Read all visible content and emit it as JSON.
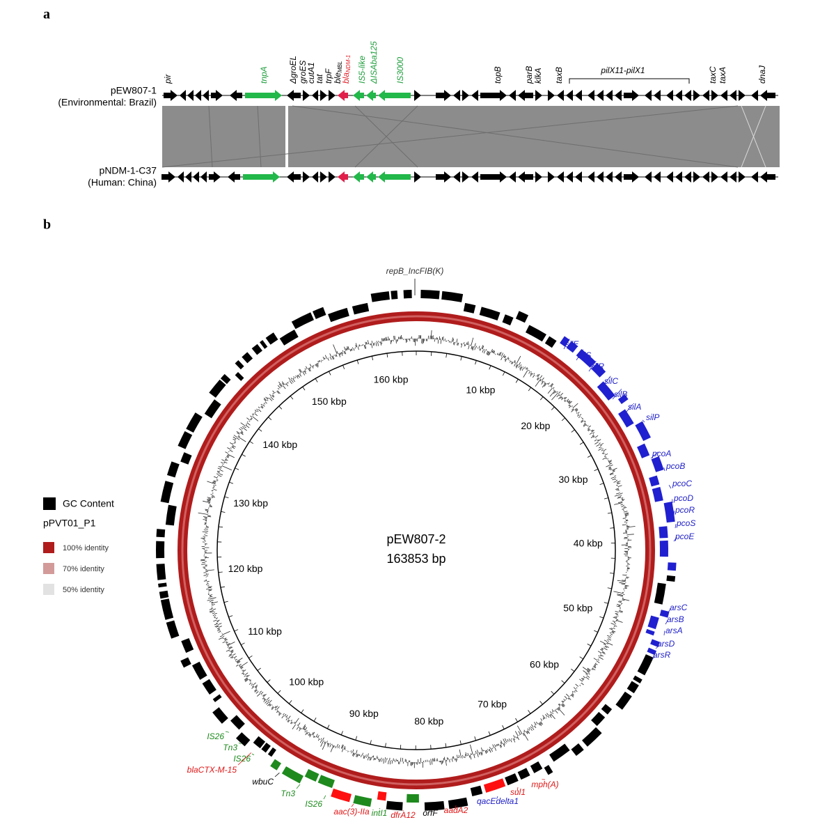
{
  "panel_a": {
    "label": "a",
    "tracks": [
      {
        "name": "pEW807-1",
        "description": "(Environmental: Brazil)"
      },
      {
        "name": "pNDM-1-C37",
        "description": "(Human: China)"
      }
    ],
    "genes": [
      {
        "text": "pir",
        "color": "#000000"
      },
      {
        "text": "tnpA",
        "color": "#1e9e3c"
      },
      {
        "text": "ΔgroEL",
        "color": "#000000"
      },
      {
        "text": "groES",
        "color": "#000000"
      },
      {
        "text": "cutA1",
        "color": "#000000"
      },
      {
        "text": "tat",
        "color": "#000000"
      },
      {
        "text": "trpF",
        "color": "#000000"
      },
      {
        "text": "ble",
        "sub": "MBL",
        "color": "#000000"
      },
      {
        "text": "bla",
        "sub": "NDM-1",
        "color": "#e0202a"
      },
      {
        "text": "IS5-like",
        "color": "#1e9e3c"
      },
      {
        "text": "ΔISAba125",
        "color": "#1e9e3c"
      },
      {
        "text": "IS3000",
        "color": "#1e9e3c"
      },
      {
        "text": "topB",
        "color": "#000000"
      },
      {
        "text": "parB",
        "color": "#000000"
      },
      {
        "text": "klkA",
        "color": "#000000"
      },
      {
        "text": "taxB",
        "color": "#000000"
      },
      {
        "text": "taxC",
        "color": "#000000"
      },
      {
        "text": "taxA",
        "color": "#000000"
      },
      {
        "text": "dnaJ",
        "color": "#000000"
      }
    ],
    "region": "pilX11-pilX1"
  },
  "panel_b": {
    "label": "b",
    "plasmid": "pEW807-2",
    "length": "163853 bp",
    "rep": "repB_IncFIB(K)",
    "ring_labels": [
      "10 kbp",
      "20 kbp",
      "30 kbp",
      "40 kbp",
      "50 kbp",
      "60 kbp",
      "70 kbp",
      "80 kbp",
      "90 kbp",
      "100 kbp",
      "110 kbp",
      "120 kbp",
      "130 kbp",
      "140 kbp",
      "150 kbp",
      "160 kbp"
    ],
    "legend": {
      "gc": "GC Content",
      "reference": "pPVT01_P1",
      "identities": [
        {
          "text": "100% identity",
          "color": "#b01c1c"
        },
        {
          "text": "70% identity",
          "color": "#d39a9a"
        },
        {
          "text": "50% identity",
          "color": "#e2e2e2"
        }
      ]
    },
    "genes": [
      {
        "text": "silE",
        "color": "#2020c8"
      },
      {
        "text": "silS",
        "color": "#2020c8"
      },
      {
        "text": "silR",
        "color": "#2020c8"
      },
      {
        "text": "silC",
        "color": "#2020c8"
      },
      {
        "text": "silB",
        "color": "#2020c8"
      },
      {
        "text": "silA",
        "color": "#2020c8"
      },
      {
        "text": "silP",
        "color": "#2020c8"
      },
      {
        "text": "pcoA",
        "color": "#2020c8"
      },
      {
        "text": "pcoB",
        "color": "#2020c8"
      },
      {
        "text": "pcoC",
        "color": "#2020c8"
      },
      {
        "text": "pcoD",
        "color": "#2020c8"
      },
      {
        "text": "pcoR",
        "color": "#2020c8"
      },
      {
        "text": "pcoS",
        "color": "#2020c8"
      },
      {
        "text": "pcoE",
        "color": "#2020c8"
      },
      {
        "text": "arsC",
        "color": "#2020c8"
      },
      {
        "text": "arsB",
        "color": "#2020c8"
      },
      {
        "text": "arsA",
        "color": "#2020c8"
      },
      {
        "text": "arsD",
        "color": "#2020c8"
      },
      {
        "text": "arsR",
        "color": "#2020c8"
      },
      {
        "text": "IS26",
        "color": "#1e8a1e"
      },
      {
        "text": "Tn3",
        "color": "#1e8a1e"
      },
      {
        "text": "IS26",
        "color": "#1e8a1e"
      },
      {
        "text": "blaCTX-M-15",
        "color": "#e01818"
      },
      {
        "text": "wbuC",
        "color": "#000000"
      },
      {
        "text": "Tn3",
        "color": "#1e8a1e"
      },
      {
        "text": "IS26",
        "color": "#1e8a1e"
      },
      {
        "text": "aac(3)-IIa",
        "color": "#e01818"
      },
      {
        "text": "intI1",
        "color": "#1e8a1e"
      },
      {
        "text": "dfrA12",
        "color": "#e01818"
      },
      {
        "text": "orfF",
        "color": "#000000"
      },
      {
        "text": "aadA2",
        "color": "#e01818"
      },
      {
        "text": "qacEdelta1",
        "color": "#2020c8"
      },
      {
        "text": "sul1",
        "color": "#e01818"
      },
      {
        "text": "mph(A)",
        "color": "#e01818"
      }
    ]
  }
}
